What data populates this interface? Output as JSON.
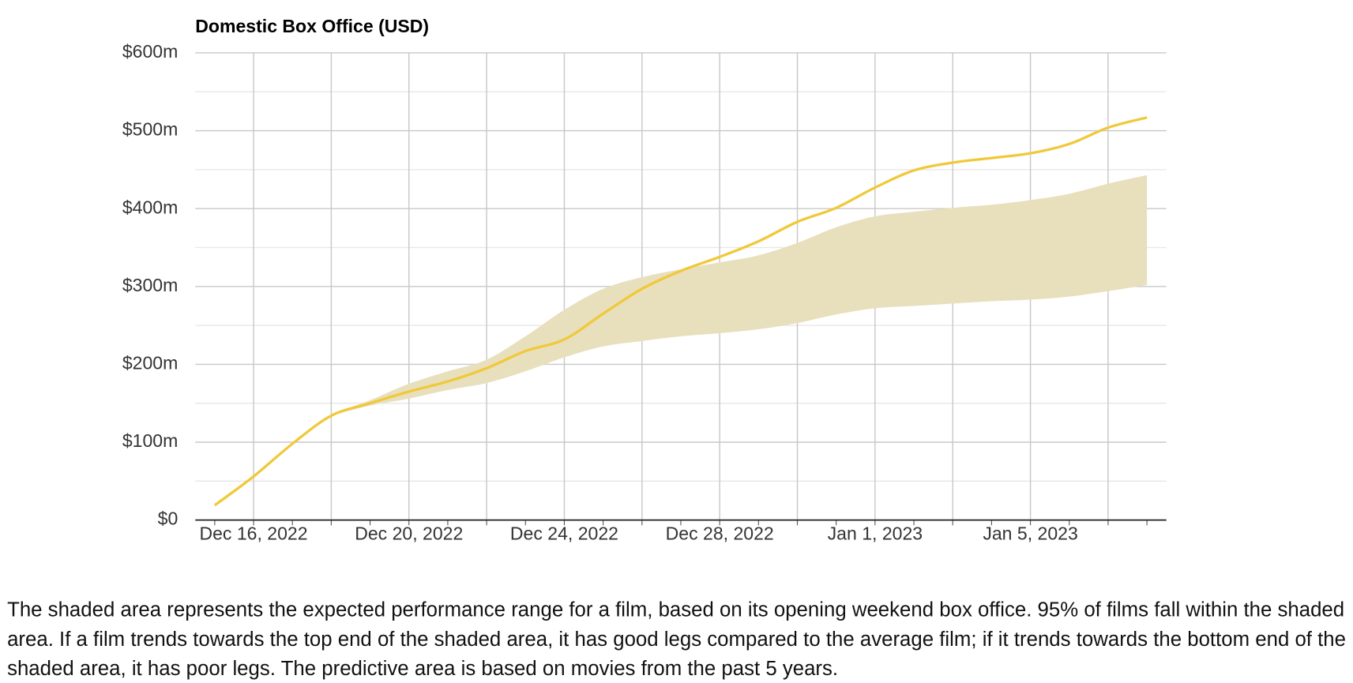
{
  "chart_data": {
    "type": "line",
    "title": "Domestic Box Office (USD)",
    "x": [
      "2022-12-15",
      "2022-12-16",
      "2022-12-17",
      "2022-12-18",
      "2022-12-19",
      "2022-12-20",
      "2022-12-21",
      "2022-12-22",
      "2022-12-23",
      "2022-12-24",
      "2022-12-25",
      "2022-12-26",
      "2022-12-27",
      "2022-12-28",
      "2022-12-29",
      "2022-12-30",
      "2022-12-31",
      "2023-01-01",
      "2023-01-02",
      "2023-01-03",
      "2023-01-04",
      "2023-01-05",
      "2023-01-06",
      "2023-01-07",
      "2023-01-08"
    ],
    "series": [
      {
        "color": "#f0c93a",
        "values": [
          19,
          56,
          98,
          134,
          150,
          165,
          178,
          195,
          217,
          232,
          265,
          297,
          320,
          338,
          358,
          383,
          401,
          427,
          449,
          459,
          465,
          471,
          483,
          504,
          517
        ]
      }
    ],
    "band": {
      "color": "#e8dfbd",
      "upper": [
        null,
        null,
        null,
        136,
        154,
        175,
        191,
        206,
        236,
        270,
        297,
        312,
        322,
        331,
        340,
        356,
        376,
        390,
        396,
        401,
        405,
        411,
        419,
        432,
        443
      ],
      "lower": [
        null,
        null,
        null,
        134,
        147,
        156,
        167,
        176,
        191,
        209,
        223,
        230,
        236,
        240,
        245,
        253,
        264,
        272,
        275,
        278,
        281,
        283,
        287,
        294,
        302
      ]
    },
    "ylim": [
      0,
      600
    ],
    "yticks": [
      {
        "value": 0,
        "label": "$0"
      },
      {
        "value": 100,
        "label": "$100m"
      },
      {
        "value": 200,
        "label": "$200m"
      },
      {
        "value": 300,
        "label": "$300m"
      },
      {
        "value": 400,
        "label": "$400m"
      },
      {
        "value": 500,
        "label": "$500m"
      },
      {
        "value": 600,
        "label": "$600m"
      }
    ],
    "xticks": [
      {
        "value": "2022-12-16",
        "label": "Dec 16, 2022"
      },
      {
        "value": "2022-12-20",
        "label": "Dec 20, 2022"
      },
      {
        "value": "2022-12-24",
        "label": "Dec 24, 2022"
      },
      {
        "value": "2022-12-28",
        "label": "Dec 28, 2022"
      },
      {
        "value": "2023-01-01",
        "label": "Jan 1, 2023"
      },
      {
        "value": "2023-01-05",
        "label": "Jan 5, 2023"
      }
    ],
    "grid": true
  },
  "caption": "The shaded area represents the expected performance range for a film, based on its opening weekend box office. 95% of films fall within the shaded area. If a film trends towards the top end of the shaded area, it has good legs compared to the average film; if it trends towards the bottom end of the shaded area, it has poor legs. The predictive area is based on movies from the past 5 years."
}
